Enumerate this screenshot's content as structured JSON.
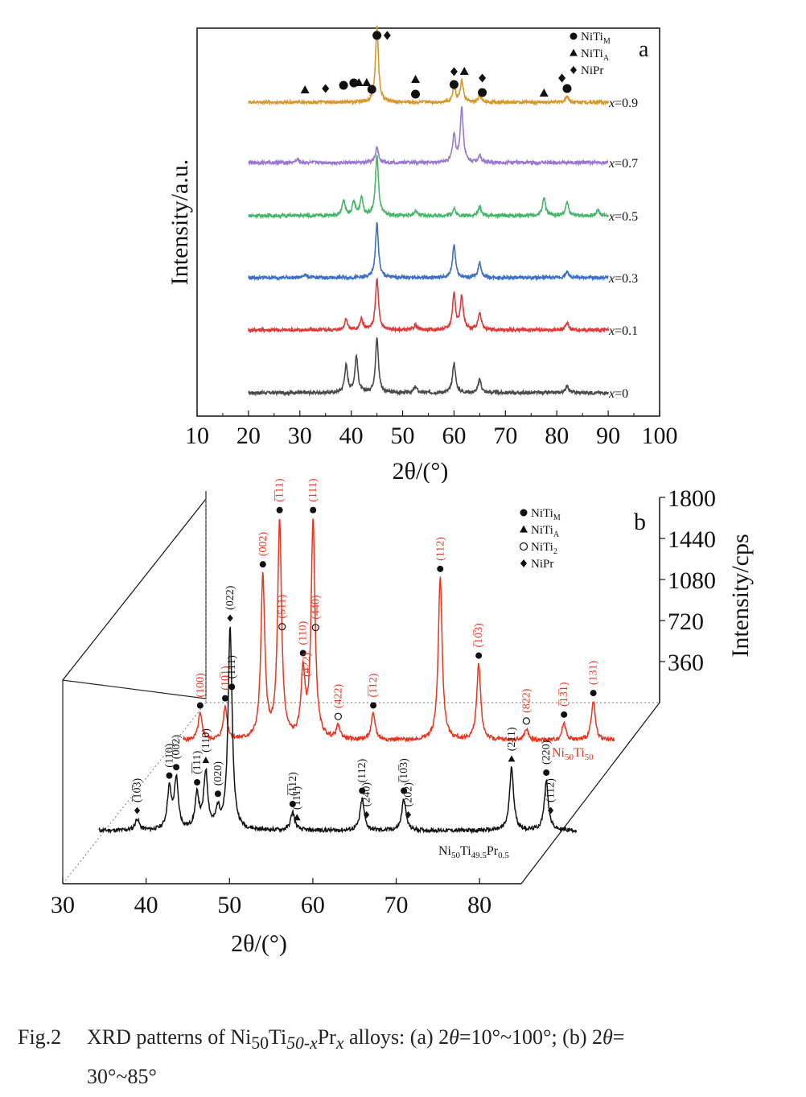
{
  "chart_data": [
    {
      "type": "line",
      "panel_label": "a",
      "ylabel": "Intensity/a.u.",
      "xlabel": "2θ/(°)",
      "xlim": [
        10,
        100
      ],
      "xticks": [
        10,
        20,
        30,
        40,
        50,
        60,
        70,
        80,
        90,
        100
      ],
      "x_range": [
        20,
        90
      ],
      "legend": [
        {
          "symbol": "circle",
          "label": "NiTi",
          "sub": "M"
        },
        {
          "symbol": "triangle",
          "label": "NiTi",
          "sub": "A"
        },
        {
          "symbol": "diamond",
          "label": "NiPr",
          "sub": ""
        }
      ],
      "series": [
        {
          "name": "x=0",
          "label_prefix": "x",
          "label_value": "=0",
          "color": "#4a4a4a",
          "peaks": [
            [
              39.0,
              0.45
            ],
            [
              41.0,
              0.6
            ],
            [
              45.0,
              0.9
            ],
            [
              52.5,
              0.1
            ],
            [
              60.0,
              0.5
            ],
            [
              65.0,
              0.22
            ],
            [
              82.0,
              0.12
            ]
          ]
        },
        {
          "name": "x=0.1",
          "label_prefix": "x",
          "label_value": "=0.1",
          "color": "#e0393a",
          "peaks": [
            [
              39.0,
              0.18
            ],
            [
              42.0,
              0.18
            ],
            [
              45.0,
              0.85
            ],
            [
              52.5,
              0.08
            ],
            [
              60.0,
              0.6
            ],
            [
              61.5,
              0.55
            ],
            [
              65.0,
              0.3
            ],
            [
              82.0,
              0.12
            ]
          ]
        },
        {
          "name": "x=0.3",
          "label_prefix": "x",
          "label_value": "=0.3",
          "color": "#3d6fc4",
          "peaks": [
            [
              45.0,
              0.9
            ],
            [
              60.0,
              0.55
            ],
            [
              65.0,
              0.25
            ],
            [
              82.0,
              0.1
            ],
            [
              31.0,
              0.06
            ]
          ]
        },
        {
          "name": "x=0.5",
          "label_prefix": "x",
          "label_value": "=0.5",
          "color": "#45b76a",
          "peaks": [
            [
              38.5,
              0.25
            ],
            [
              40.5,
              0.22
            ],
            [
              42.0,
              0.3
            ],
            [
              45.0,
              1.0
            ],
            [
              52.5,
              0.08
            ],
            [
              60.0,
              0.12
            ],
            [
              65.0,
              0.15
            ],
            [
              77.5,
              0.3
            ],
            [
              82.0,
              0.22
            ],
            [
              88.0,
              0.1
            ]
          ]
        },
        {
          "name": "x=0.7",
          "label_prefix": "x",
          "label_value": "=0.7",
          "color": "#9a78d0",
          "peaks": [
            [
              29.5,
              0.05
            ],
            [
              45.0,
              0.25
            ],
            [
              60.0,
              0.45
            ],
            [
              61.5,
              0.9
            ],
            [
              65.0,
              0.12
            ]
          ]
        },
        {
          "name": "x=0.9",
          "label_prefix": "x",
          "label_value": "=0.9",
          "color": "#d9982a",
          "peaks": [
            [
              45.0,
              1.25
            ],
            [
              60.0,
              0.25
            ],
            [
              61.5,
              0.35
            ],
            [
              65.0,
              0.1
            ],
            [
              82.0,
              0.1
            ]
          ]
        }
      ],
      "markers": [
        {
          "x": 45,
          "symbol": "circle"
        },
        {
          "x": 47,
          "symbol": "diamond"
        },
        {
          "x": 31,
          "symbol": "triangle"
        },
        {
          "x": 35,
          "symbol": "diamond"
        },
        {
          "x": 38.5,
          "symbol": "circle"
        },
        {
          "x": 40.5,
          "symbol": "circle"
        },
        {
          "x": 41.5,
          "symbol": "triangle"
        },
        {
          "x": 43,
          "symbol": "triangle"
        },
        {
          "x": 44,
          "symbol": "circle"
        },
        {
          "x": 52.5,
          "symbol": "triangle"
        },
        {
          "x": 52.5,
          "symbol": "circle"
        },
        {
          "x": 60,
          "symbol": "diamond"
        },
        {
          "x": 62,
          "symbol": "triangle"
        },
        {
          "x": 60,
          "symbol": "circle"
        },
        {
          "x": 65.5,
          "symbol": "diamond"
        },
        {
          "x": 65.5,
          "symbol": "circle"
        },
        {
          "x": 77.5,
          "symbol": "triangle"
        },
        {
          "x": 81,
          "symbol": "diamond"
        },
        {
          "x": 82,
          "symbol": "circle"
        }
      ]
    },
    {
      "type": "line",
      "panel_label": "b",
      "xlabel": "2θ/(°)",
      "ylabel": "Intensity/cps",
      "xlim": [
        30,
        85
      ],
      "xticks": [
        30,
        40,
        50,
        60,
        70,
        80
      ],
      "ylim": [
        0,
        1800
      ],
      "yticks": [
        360,
        720,
        1080,
        1440,
        1800
      ],
      "legend": [
        {
          "symbol": "circle",
          "label": "NiTi",
          "sub": "M"
        },
        {
          "symbol": "triangle",
          "label": "NiTi",
          "sub": "A"
        },
        {
          "symbol": "open-circle",
          "label": "NiTi",
          "sub": "2"
        },
        {
          "symbol": "diamond",
          "label": "NiPr",
          "sub": ""
        }
      ],
      "series": [
        {
          "name": "Ni50Ti50",
          "label_main": "Ni",
          "label_sub1": "50",
          "label_mid": "Ti",
          "label_sub2": "50",
          "color": "#e8351f",
          "peaks": [
            [
              44.5,
              0.12
            ],
            [
              47.5,
              0.15
            ],
            [
              52.0,
              0.75
            ],
            [
              54.0,
              1.0
            ],
            [
              56.8,
              0.3
            ],
            [
              58.0,
              1.0
            ],
            [
              61.0,
              0.06
            ],
            [
              65.2,
              0.12
            ],
            [
              73.2,
              0.75
            ],
            [
              77.8,
              0.35
            ],
            [
              83.5,
              0.05
            ],
            [
              88.0,
              0.08
            ],
            [
              91.5,
              0.18
            ]
          ],
          "annotations": [
            {
              "x": 44.5,
              "label": "(100)",
              "symbol": "circle"
            },
            {
              "x": 47.5,
              "label": "(10̅1)",
              "symbol": "circle"
            },
            {
              "x": 52.0,
              "label": "(002)",
              "symbol": "circle"
            },
            {
              "x": 54.0,
              "label": "(̅1̅11)",
              "symbol": "circle"
            },
            {
              "x": 54.3,
              "label": "(511)",
              "symbol": "open-circle"
            },
            {
              "x": 56.8,
              "label": "(110)",
              "symbol": "circle"
            },
            {
              "x": 57.2,
              "label": "(422)",
              "symbol": "none"
            },
            {
              "x": 58.0,
              "label": "(111)",
              "symbol": "circle"
            },
            {
              "x": 58.3,
              "label": "(440)",
              "symbol": "open-circle"
            },
            {
              "x": 61.0,
              "label": "(422)",
              "symbol": "open-circle"
            },
            {
              "x": 65.2,
              "label": "(̅1̅12)",
              "symbol": "circle"
            },
            {
              "x": 73.2,
              "label": "(112)",
              "symbol": "circle"
            },
            {
              "x": 77.8,
              "label": "(̅10̅3)",
              "symbol": "circle"
            },
            {
              "x": 83.5,
              "label": "(822)",
              "symbol": "open-circle"
            },
            {
              "x": 88.0,
              "label": "(̅13̅1)",
              "symbol": "circle"
            },
            {
              "x": 91.5,
              "label": "(131)",
              "symbol": "circle"
            }
          ]
        },
        {
          "name": "Ni50Ti49.5Pr0.5",
          "label_main": "Ni",
          "label_sub1": "50",
          "label_mid": "Ti",
          "label_sub2": "49.5",
          "label_mid2": "Pr",
          "label_sub3": "0.5",
          "color": "#111111",
          "peaks": [
            [
              38.9,
              0.05
            ],
            [
              42.6,
              0.18
            ],
            [
              43.4,
              0.22
            ],
            [
              45.8,
              0.15
            ],
            [
              46.8,
              0.25
            ],
            [
              48.2,
              0.08
            ],
            [
              49.6,
              0.9
            ],
            [
              56.8,
              0.08
            ],
            [
              64.8,
              0.14
            ],
            [
              69.6,
              0.14
            ],
            [
              82.0,
              0.28
            ],
            [
              86.0,
              0.22
            ]
          ],
          "annotations": [
            {
              "x": 38.9,
              "label": "(̅10̅3)",
              "symbol": "diamond"
            },
            {
              "x": 42.6,
              "label": "(110)",
              "symbol": "circle"
            },
            {
              "x": 43.4,
              "label": "(002)",
              "symbol": "circle"
            },
            {
              "x": 45.8,
              "label": "(̅1̅11)",
              "symbol": "circle"
            },
            {
              "x": 46.8,
              "label": "(110)",
              "symbol": "triangle"
            },
            {
              "x": 48.2,
              "label": "(020)",
              "symbol": "circle"
            },
            {
              "x": 49.6,
              "label": "(022)",
              "symbol": "diamond"
            },
            {
              "x": 49.8,
              "label": "(111)",
              "symbol": "circle"
            },
            {
              "x": 56.8,
              "label": "(̅1̅12)",
              "symbol": "circle"
            },
            {
              "x": 57.3,
              "label": "(111)",
              "symbol": "triangle"
            },
            {
              "x": 64.8,
              "label": "(112)",
              "symbol": "circle"
            },
            {
              "x": 65.3,
              "label": "(240)",
              "symbol": "diamond"
            },
            {
              "x": 69.6,
              "label": "(̅10̅3)",
              "symbol": "circle"
            },
            {
              "x": 70.1,
              "label": "(202)",
              "symbol": "diamond"
            },
            {
              "x": 82.0,
              "label": "(211)",
              "symbol": "triangle"
            },
            {
              "x": 86.0,
              "label": "(220)",
              "symbol": "circle"
            },
            {
              "x": 86.5,
              "label": "(1̅12)",
              "symbol": "diamond"
            }
          ]
        }
      ]
    }
  ],
  "caption": {
    "label": "Fig.2",
    "line1_a": "XRD patterns of Ni",
    "line1_sub1": "50",
    "line1_b": "Ti",
    "line1_sub2": "50-x",
    "line1_c": "Pr",
    "line1_sub3": "x",
    "line1_d": " alloys: (a) 2",
    "theta": "θ",
    "line1_e": "=10°~100°; (b) 2",
    "line1_f": "=",
    "line2": "30°~85°"
  }
}
